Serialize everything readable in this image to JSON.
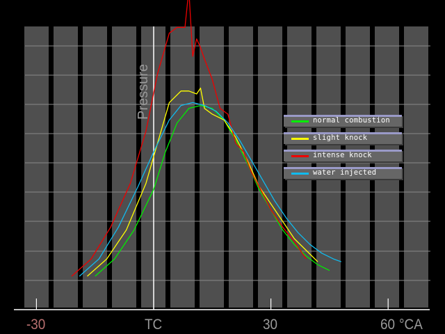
{
  "chart_data": {
    "type": "line",
    "title": "",
    "xlabel": "°CA",
    "ylabel": "Pressure",
    "x_ticks": [
      {
        "label": "-30",
        "value": -30,
        "color": "#b87070"
      },
      {
        "label": "TC",
        "value": 0,
        "color": "#9a9a9a"
      },
      {
        "label": "30",
        "value": 30,
        "color": "#9a9a9a"
      },
      {
        "label": "60",
        "value": 60,
        "color": "#9a9a9a"
      }
    ],
    "x_unit": "°CA",
    "xlim": [
      -33,
      71
    ],
    "ylim": [
      0,
      10
    ],
    "grid": true,
    "legend_position": "right, mid",
    "series": [
      {
        "name": "normal combustion",
        "color": "#00ee00",
        "x": [
          -15,
          -10,
          -5,
          0,
          3,
          6,
          9,
          12,
          15,
          18,
          21,
          24,
          27,
          30,
          33,
          36,
          39,
          42,
          45
        ],
        "y": [
          0.6,
          1.2,
          2.2,
          3.6,
          4.9,
          5.9,
          6.4,
          6.5,
          6.4,
          6.0,
          5.3,
          4.5,
          3.6,
          2.9,
          2.2,
          1.7,
          1.3,
          1.0,
          0.8
        ]
      },
      {
        "name": "slight knock",
        "color": "#ffff00",
        "x": [
          -17,
          -12,
          -7,
          -2,
          1,
          4,
          7,
          9,
          11,
          12,
          13,
          15,
          18,
          21,
          24,
          27,
          30,
          33,
          36,
          39,
          42
        ],
        "y": [
          0.6,
          1.2,
          2.2,
          3.8,
          5.2,
          6.6,
          7.0,
          7.0,
          6.9,
          7.1,
          6.4,
          6.2,
          6.0,
          5.4,
          4.6,
          3.7,
          3.1,
          2.5,
          1.9,
          1.5,
          1.1
        ]
      },
      {
        "name": "intense knock",
        "color": "#ee0000",
        "x": [
          -21,
          -16,
          -11,
          -6,
          -2,
          1,
          4,
          6,
          8,
          9,
          10,
          11,
          12,
          13,
          15,
          17,
          19,
          21,
          23,
          25,
          27,
          30,
          33,
          36,
          39
        ],
        "y": [
          0.6,
          1.2,
          2.3,
          3.8,
          5.6,
          7.6,
          9.0,
          9.2,
          9.2,
          10.5,
          8.2,
          8.8,
          8.5,
          8.1,
          7.4,
          6.4,
          6.2,
          5.2,
          4.9,
          4.2,
          3.7,
          2.9,
          2.3,
          1.8,
          1.2
        ]
      },
      {
        "name": "water injected",
        "color": "#11bbee",
        "x": [
          -19,
          -14,
          -9,
          -4,
          0,
          4,
          7,
          10,
          13,
          16,
          19,
          22,
          25,
          28,
          31,
          34,
          37,
          40,
          43,
          46,
          48
        ],
        "y": [
          0.6,
          1.2,
          2.3,
          3.7,
          4.9,
          6.0,
          6.5,
          6.6,
          6.5,
          6.3,
          5.9,
          5.3,
          4.6,
          3.9,
          3.2,
          2.6,
          2.1,
          1.7,
          1.4,
          1.2,
          1.1
        ]
      }
    ]
  },
  "legend": {
    "items": [
      {
        "label": "normal combustion",
        "color": "#00ee00"
      },
      {
        "label": "slight knock",
        "color": "#ffff00"
      },
      {
        "label": "intense knock",
        "color": "#ee0000"
      },
      {
        "label": "water injected",
        "color": "#11bbee"
      }
    ]
  },
  "axis": {
    "y_label": "Pressure",
    "x_labels": {
      "minus30": "-30",
      "tc": "TC",
      "plus30": "30",
      "plus60": "60",
      "unit": "°CA"
    }
  },
  "colors": {
    "background": "#000000",
    "column": "#4f4f4f",
    "gridline": "#8a8a8a",
    "axis": "#ffffff",
    "label": "#9a9a9a",
    "negative_label": "#b87070"
  }
}
